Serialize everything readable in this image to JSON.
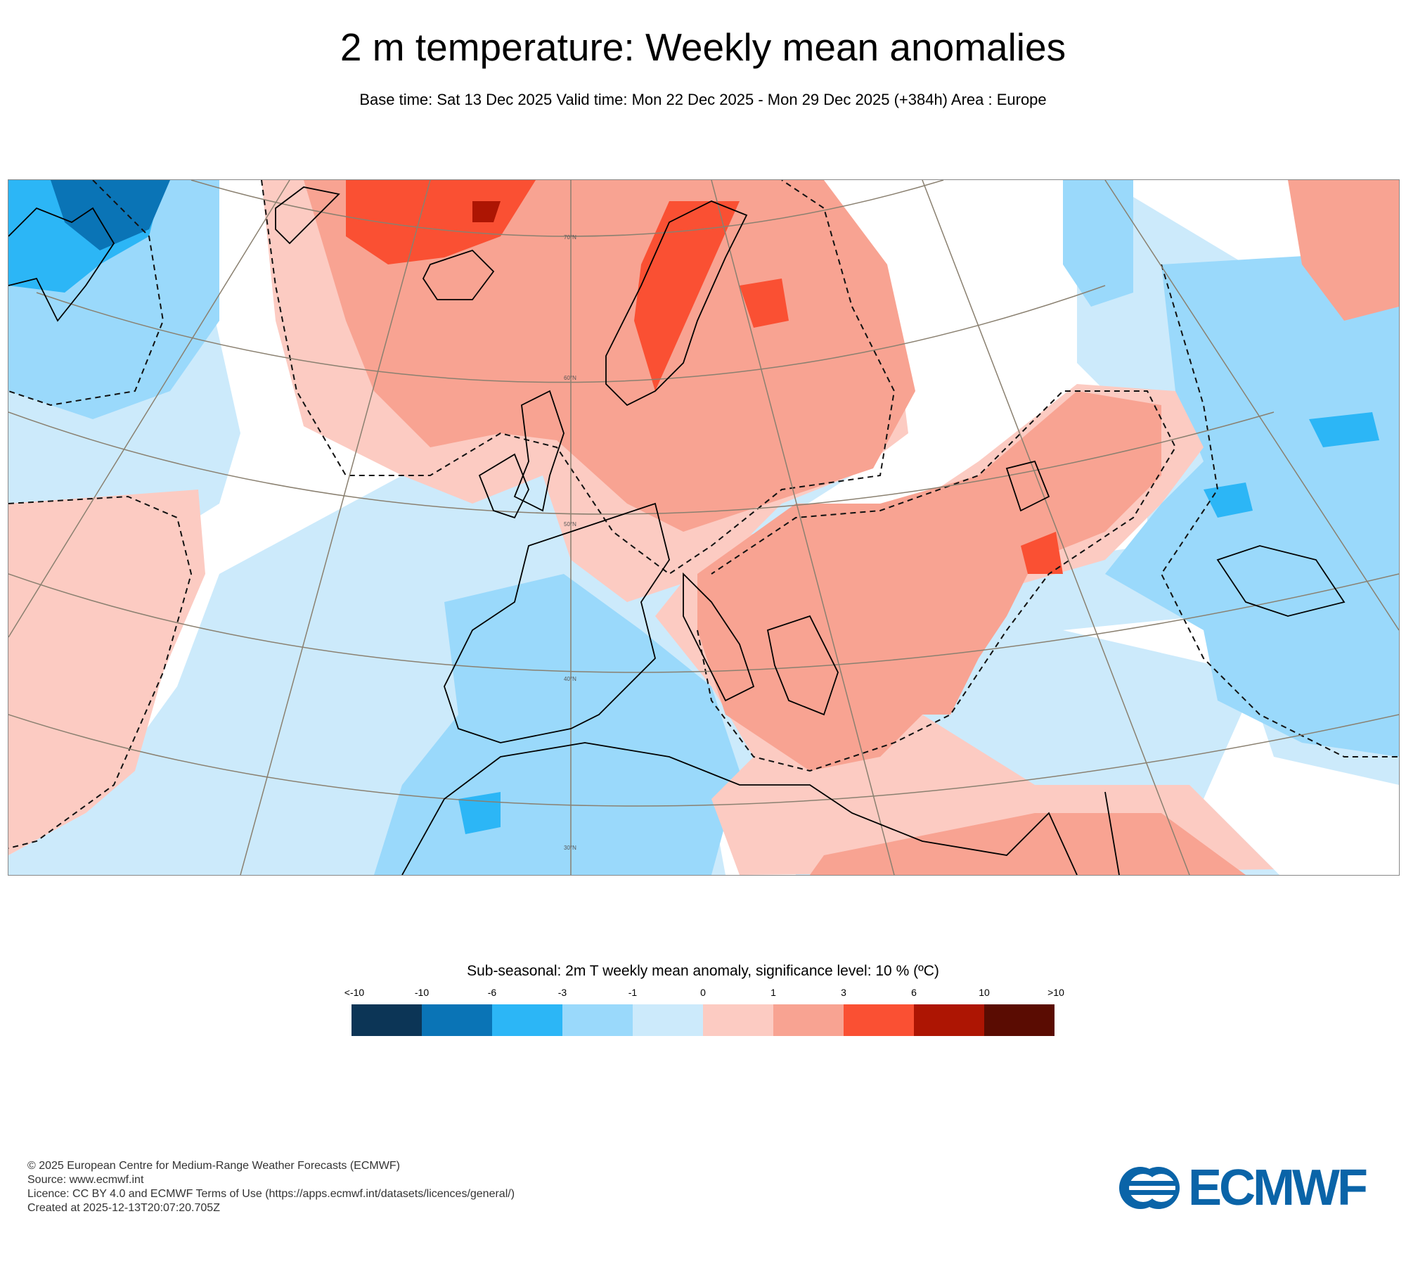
{
  "header": {
    "title": "2 m temperature: Weekly mean anomalies",
    "subtitle": "Base time: Sat 13 Dec 2025 Valid time: Mon 22 Dec 2025 - Mon 29 Dec 2025 (+384h) Area : Europe"
  },
  "map": {
    "area": "Europe",
    "latitude_labels": [
      "70°N",
      "60°N",
      "50°N",
      "40°N",
      "30°N"
    ]
  },
  "legend": {
    "title": "Sub-seasonal: 2m T weekly mean anomaly, significance level: 10 % (ºC)",
    "ticks": [
      "<-10",
      "-10",
      "-6",
      "-3",
      "-1",
      "0",
      "1",
      "3",
      "6",
      "10",
      ">10"
    ],
    "colors": [
      "#0c3556",
      "#0a74b6",
      "#2cb6f6",
      "#9ad9fb",
      "#cceafb",
      "#fccbc2",
      "#f8a392",
      "#fa5033",
      "#ad1503",
      "#5a0c02"
    ]
  },
  "footer": {
    "copyright": "© 2025 European Centre for Medium-Range Weather Forecasts (ECMWF)",
    "source": "Source: www.ecmwf.int",
    "licence": "Licence: CC BY 4.0 and ECMWF Terms of Use (https://apps.ecmwf.int/datasets/licences/general/)",
    "created": "Created at 2025-12-13T20:07:20.705Z"
  },
  "logo": {
    "text": "ECMWF",
    "color": "#0a64a8"
  }
}
